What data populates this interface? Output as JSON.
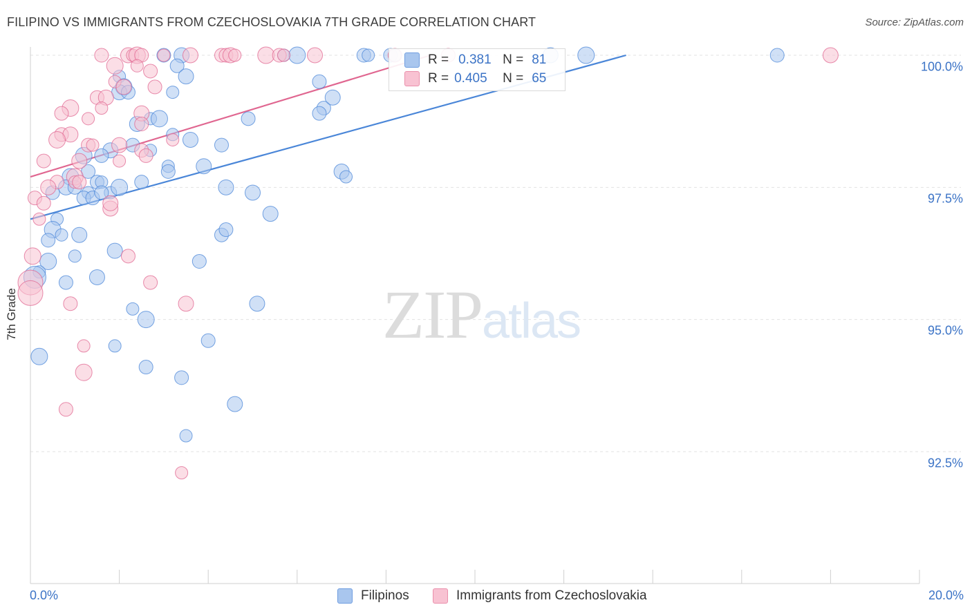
{
  "title": "FILIPINO VS IMMIGRANTS FROM CZECHOSLOVAKIA 7TH GRADE CORRELATION CHART",
  "source": "Source: ZipAtlas.com",
  "watermark": {
    "zip": "ZIP",
    "atlas": "atlas"
  },
  "legend": {
    "r_label": "R =",
    "n_label": "N =",
    "rows": [
      {
        "series": "Filipinos",
        "r": "0.381",
        "n": "81",
        "color": "#a9c6ee",
        "border": "#6f9de0"
      },
      {
        "series": "Immigrants from Czechoslovakia",
        "r": "0.405",
        "n": "65",
        "color": "#f8c2d2",
        "border": "#ea8fab"
      }
    ]
  },
  "chart_data": {
    "type": "scatter",
    "title": "FILIPINO VS IMMIGRANTS FROM CZECHOSLOVAKIA 7TH GRADE CORRELATION CHART",
    "xlabel": "",
    "ylabel": "7th Grade",
    "xlim": [
      0.0,
      20.0
    ],
    "ylim": [
      90.0,
      100.2
    ],
    "x_tick_labels": [
      "0.0%",
      "20.0%"
    ],
    "y_ticks": [
      92.5,
      95.0,
      97.5,
      100.0
    ],
    "y_tick_labels": [
      "92.5%",
      "95.0%",
      "97.5%",
      "100.0%"
    ],
    "grid": true,
    "series": [
      {
        "name": "Filipinos",
        "color": "#4a86d8",
        "fill": "#a9c6ee",
        "trend": {
          "x": [
            0.0,
            13.4
          ],
          "y": [
            96.9,
            100.0
          ]
        },
        "points": [
          {
            "x": 3.0,
            "y": 100.0
          },
          {
            "x": 3.4,
            "y": 100.0
          },
          {
            "x": 5.7,
            "y": 100.0
          },
          {
            "x": 6.0,
            "y": 100.0
          },
          {
            "x": 7.5,
            "y": 100.0
          },
          {
            "x": 7.6,
            "y": 100.0
          },
          {
            "x": 11.7,
            "y": 100.0
          },
          {
            "x": 16.8,
            "y": 100.0
          },
          {
            "x": 3.3,
            "y": 99.8
          },
          {
            "x": 3.5,
            "y": 99.6
          },
          {
            "x": 2.0,
            "y": 99.6
          },
          {
            "x": 2.1,
            "y": 99.4
          },
          {
            "x": 6.5,
            "y": 99.5
          },
          {
            "x": 3.2,
            "y": 99.3
          },
          {
            "x": 2.0,
            "y": 99.3
          },
          {
            "x": 2.2,
            "y": 99.3
          },
          {
            "x": 6.6,
            "y": 99.0
          },
          {
            "x": 2.4,
            "y": 98.7
          },
          {
            "x": 2.7,
            "y": 98.8
          },
          {
            "x": 2.9,
            "y": 98.8
          },
          {
            "x": 4.9,
            "y": 98.8
          },
          {
            "x": 3.2,
            "y": 98.5
          },
          {
            "x": 3.6,
            "y": 98.4
          },
          {
            "x": 4.3,
            "y": 98.3
          },
          {
            "x": 2.3,
            "y": 98.3
          },
          {
            "x": 1.8,
            "y": 98.2
          },
          {
            "x": 2.7,
            "y": 98.2
          },
          {
            "x": 1.2,
            "y": 98.1
          },
          {
            "x": 1.6,
            "y": 98.1
          },
          {
            "x": 3.1,
            "y": 97.9
          },
          {
            "x": 3.9,
            "y": 97.9
          },
          {
            "x": 1.3,
            "y": 97.8
          },
          {
            "x": 3.1,
            "y": 97.8
          },
          {
            "x": 7.0,
            "y": 97.8
          },
          {
            "x": 7.1,
            "y": 97.7
          },
          {
            "x": 0.9,
            "y": 97.7
          },
          {
            "x": 1.5,
            "y": 97.6
          },
          {
            "x": 1.6,
            "y": 97.6
          },
          {
            "x": 0.8,
            "y": 97.5
          },
          {
            "x": 1.0,
            "y": 97.5
          },
          {
            "x": 2.5,
            "y": 97.6
          },
          {
            "x": 4.4,
            "y": 97.5
          },
          {
            "x": 1.8,
            "y": 97.4
          },
          {
            "x": 2.0,
            "y": 97.5
          },
          {
            "x": 0.5,
            "y": 97.4
          },
          {
            "x": 1.3,
            "y": 97.4
          },
          {
            "x": 5.0,
            "y": 97.4
          },
          {
            "x": 1.2,
            "y": 97.3
          },
          {
            "x": 1.4,
            "y": 97.3
          },
          {
            "x": 5.4,
            "y": 97.0
          },
          {
            "x": 0.6,
            "y": 96.9
          },
          {
            "x": 0.5,
            "y": 96.7
          },
          {
            "x": 0.4,
            "y": 96.5
          },
          {
            "x": 0.7,
            "y": 96.6
          },
          {
            "x": 1.1,
            "y": 96.6
          },
          {
            "x": 4.3,
            "y": 96.6
          },
          {
            "x": 4.4,
            "y": 96.7
          },
          {
            "x": 1.9,
            "y": 96.3
          },
          {
            "x": 1.0,
            "y": 96.2
          },
          {
            "x": 0.4,
            "y": 96.1
          },
          {
            "x": 3.8,
            "y": 96.1
          },
          {
            "x": 0.2,
            "y": 95.9
          },
          {
            "x": 1.5,
            "y": 95.8
          },
          {
            "x": 0.1,
            "y": 95.8
          },
          {
            "x": 0.8,
            "y": 95.7
          },
          {
            "x": 5.1,
            "y": 95.3
          },
          {
            "x": 2.3,
            "y": 95.2
          },
          {
            "x": 2.6,
            "y": 95.0
          },
          {
            "x": 4.0,
            "y": 94.6
          },
          {
            "x": 1.9,
            "y": 94.5
          },
          {
            "x": 0.2,
            "y": 94.3
          },
          {
            "x": 2.6,
            "y": 94.1
          },
          {
            "x": 3.4,
            "y": 93.9
          },
          {
            "x": 4.6,
            "y": 93.4
          },
          {
            "x": 3.5,
            "y": 92.8
          },
          {
            "x": 12.5,
            "y": 100.0
          },
          {
            "x": 8.1,
            "y": 100.0
          },
          {
            "x": 8.2,
            "y": 100.0
          },
          {
            "x": 6.8,
            "y": 99.2
          },
          {
            "x": 6.5,
            "y": 98.9
          },
          {
            "x": 1.6,
            "y": 97.4
          }
        ]
      },
      {
        "name": "Immigrants from Czechoslovakia",
        "color": "#e06690",
        "fill": "#f8c2d2",
        "trend": {
          "x": [
            0.0,
            9.0
          ],
          "y": [
            97.7,
            100.0
          ]
        },
        "points": [
          {
            "x": 1.6,
            "y": 100.0
          },
          {
            "x": 2.2,
            "y": 100.0
          },
          {
            "x": 2.3,
            "y": 100.0
          },
          {
            "x": 2.4,
            "y": 100.0
          },
          {
            "x": 2.5,
            "y": 100.0
          },
          {
            "x": 3.0,
            "y": 100.0
          },
          {
            "x": 3.6,
            "y": 100.0
          },
          {
            "x": 4.3,
            "y": 100.0
          },
          {
            "x": 4.4,
            "y": 100.0
          },
          {
            "x": 4.5,
            "y": 100.0
          },
          {
            "x": 4.6,
            "y": 100.0
          },
          {
            "x": 5.3,
            "y": 100.0
          },
          {
            "x": 5.6,
            "y": 100.0
          },
          {
            "x": 5.7,
            "y": 100.0
          },
          {
            "x": 6.4,
            "y": 100.0
          },
          {
            "x": 8.2,
            "y": 100.0
          },
          {
            "x": 9.4,
            "y": 100.0
          },
          {
            "x": 18.0,
            "y": 100.0
          },
          {
            "x": 2.4,
            "y": 99.8
          },
          {
            "x": 1.9,
            "y": 99.8
          },
          {
            "x": 2.7,
            "y": 99.7
          },
          {
            "x": 1.9,
            "y": 99.5
          },
          {
            "x": 2.1,
            "y": 99.4
          },
          {
            "x": 2.8,
            "y": 99.4
          },
          {
            "x": 1.5,
            "y": 99.2
          },
          {
            "x": 1.7,
            "y": 99.2
          },
          {
            "x": 1.6,
            "y": 99.0
          },
          {
            "x": 0.9,
            "y": 99.0
          },
          {
            "x": 0.7,
            "y": 98.9
          },
          {
            "x": 1.3,
            "y": 98.8
          },
          {
            "x": 2.5,
            "y": 98.9
          },
          {
            "x": 2.5,
            "y": 98.7
          },
          {
            "x": 0.7,
            "y": 98.5
          },
          {
            "x": 0.9,
            "y": 98.5
          },
          {
            "x": 3.2,
            "y": 98.4
          },
          {
            "x": 0.6,
            "y": 98.4
          },
          {
            "x": 1.3,
            "y": 98.3
          },
          {
            "x": 1.4,
            "y": 98.3
          },
          {
            "x": 2.0,
            "y": 98.3
          },
          {
            "x": 2.5,
            "y": 98.2
          },
          {
            "x": 0.3,
            "y": 98.0
          },
          {
            "x": 1.1,
            "y": 98.0
          },
          {
            "x": 2.0,
            "y": 98.0
          },
          {
            "x": 1.0,
            "y": 97.7
          },
          {
            "x": 0.6,
            "y": 97.6
          },
          {
            "x": 1.0,
            "y": 97.6
          },
          {
            "x": 0.4,
            "y": 97.5
          },
          {
            "x": 0.1,
            "y": 97.3
          },
          {
            "x": 0.3,
            "y": 97.2
          },
          {
            "x": 1.8,
            "y": 97.1
          },
          {
            "x": 0.2,
            "y": 96.9
          },
          {
            "x": 0.05,
            "y": 96.2
          },
          {
            "x": 2.2,
            "y": 96.2
          },
          {
            "x": 0.0,
            "y": 95.7
          },
          {
            "x": 0.0,
            "y": 95.5
          },
          {
            "x": 2.7,
            "y": 95.7
          },
          {
            "x": 0.9,
            "y": 95.3
          },
          {
            "x": 3.5,
            "y": 95.3
          },
          {
            "x": 1.2,
            "y": 94.5
          },
          {
            "x": 1.2,
            "y": 94.0
          },
          {
            "x": 0.8,
            "y": 93.3
          },
          {
            "x": 3.4,
            "y": 92.1
          },
          {
            "x": 1.8,
            "y": 97.2
          },
          {
            "x": 2.6,
            "y": 98.1
          },
          {
            "x": 1.1,
            "y": 97.6
          }
        ]
      }
    ]
  }
}
